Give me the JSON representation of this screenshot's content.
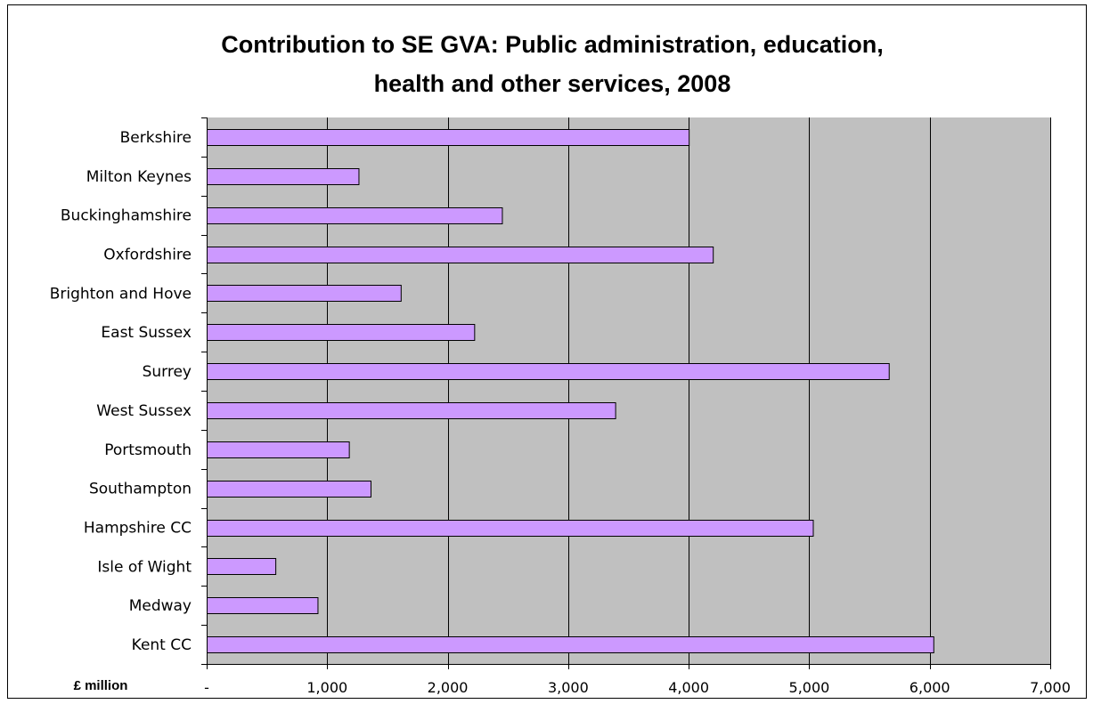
{
  "chart_data": {
    "type": "bar",
    "orientation": "horizontal",
    "title_lines": [
      "Contribution to SE GVA: Public administration, education,",
      "health and other services, 2008"
    ],
    "unit_label": "£ million",
    "categories": [
      "Berkshire",
      "Milton Keynes",
      "Buckinghamshire",
      "Oxfordshire",
      "Brighton and Hove",
      "East Sussex",
      "Surrey",
      "West Sussex",
      "Portsmouth",
      "Southampton",
      "Hampshire CC",
      "Isle of Wight",
      "Medway",
      "Kent CC"
    ],
    "values": [
      4000,
      1260,
      2450,
      4200,
      1610,
      2220,
      5660,
      3390,
      1180,
      1360,
      5030,
      570,
      920,
      6030
    ],
    "xlim": [
      0,
      7000
    ],
    "xticks": [
      0,
      1000,
      2000,
      3000,
      4000,
      5000,
      6000,
      7000
    ],
    "xtick_labels": [
      "-",
      "1,000",
      "2,000",
      "3,000",
      "4,000",
      "5,000",
      "6,000",
      "7,000"
    ],
    "grid": "vertical",
    "legend": "none",
    "colors": {
      "bar_fill": "#cc99ff",
      "bar_stroke": "#000000",
      "plot_background": "#c0c0c0",
      "gridline": "#000000"
    }
  }
}
